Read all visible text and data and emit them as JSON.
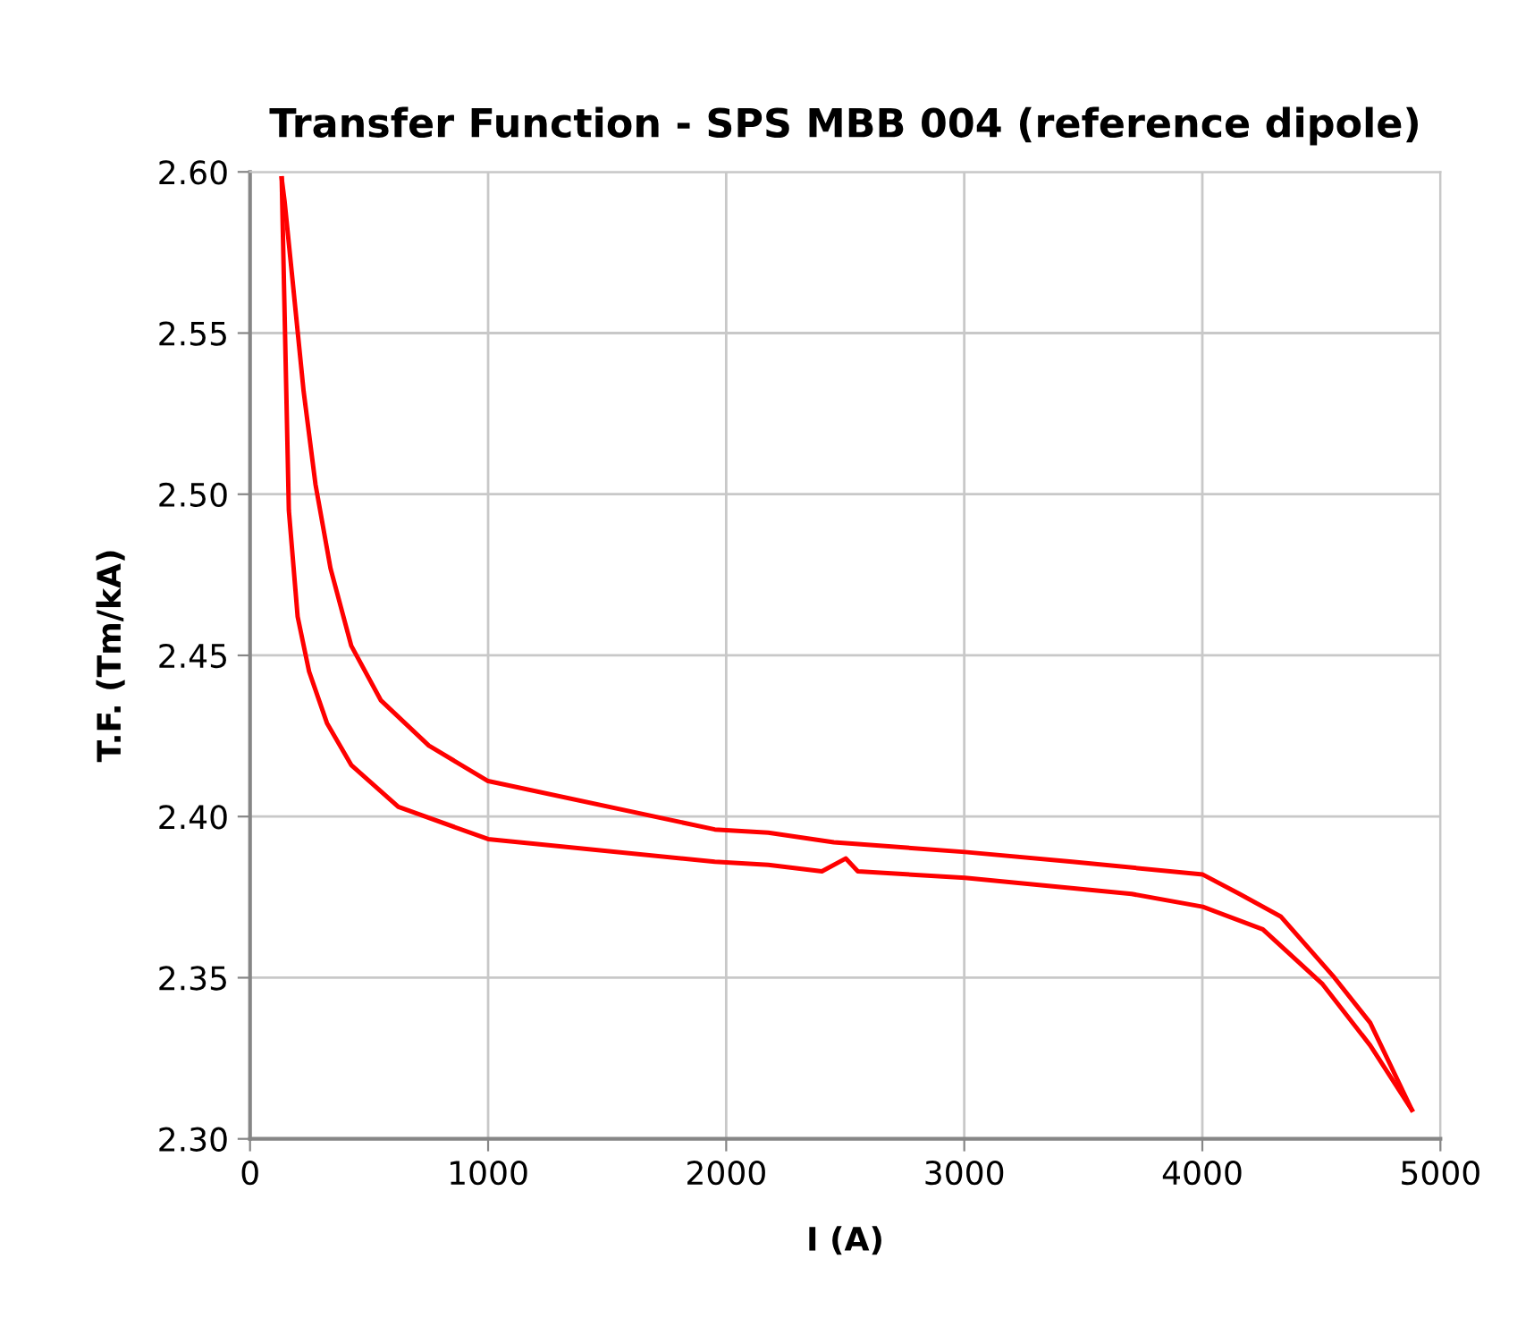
{
  "chart_data": {
    "type": "line",
    "title": "Transfer Function - SPS MBB 004 (reference dipole)",
    "xlabel": "I (A)",
    "ylabel": "T.F. (Tm/kA)",
    "xlim": [
      0,
      5000
    ],
    "xticks": [
      0,
      1000,
      2000,
      3000,
      4000,
      5000
    ],
    "ylim": [
      2.3,
      2.6
    ],
    "yticks": [
      {
        "value": 2.3,
        "label": "2.30"
      },
      {
        "value": 2.35,
        "label": "2.35"
      },
      {
        "value": 2.4,
        "label": "2.40"
      },
      {
        "value": 2.45,
        "label": "2.45"
      },
      {
        "value": 2.5,
        "label": "2.50"
      },
      {
        "value": 2.55,
        "label": "2.55"
      },
      {
        "value": 2.6,
        "label": "2.60"
      }
    ],
    "grid": true,
    "marker": "none",
    "line_style": "solid",
    "series": [
      {
        "color": "#ff0000",
        "x": [
          133,
          163,
          200,
          248,
          323,
          425,
          623,
          1000,
          1952,
          2177,
          2402,
          2502,
          2553,
          3003,
          3703,
          4002,
          4254,
          4505,
          4705,
          4880
        ],
        "values": [
          2.598,
          2.495,
          2.462,
          2.445,
          2.429,
          2.416,
          2.403,
          2.393,
          2.386,
          2.385,
          2.383,
          2.387,
          2.383,
          2.381,
          2.376,
          2.372,
          2.365,
          2.348,
          2.329,
          2.309
        ]
      },
      {
        "color": "#ff0000",
        "x": [
          133,
          145,
          175,
          225,
          275,
          338,
          425,
          550,
          751,
          1000,
          1952,
          2177,
          2452,
          3003,
          3453,
          4002,
          4156,
          4329,
          4555,
          4705,
          4880
        ],
        "values": [
          2.598,
          2.591,
          2.569,
          2.532,
          2.503,
          2.477,
          2.453,
          2.436,
          2.422,
          2.411,
          2.396,
          2.395,
          2.392,
          2.389,
          2.386,
          2.382,
          2.376,
          2.369,
          2.35,
          2.336,
          2.309
        ]
      }
    ]
  }
}
